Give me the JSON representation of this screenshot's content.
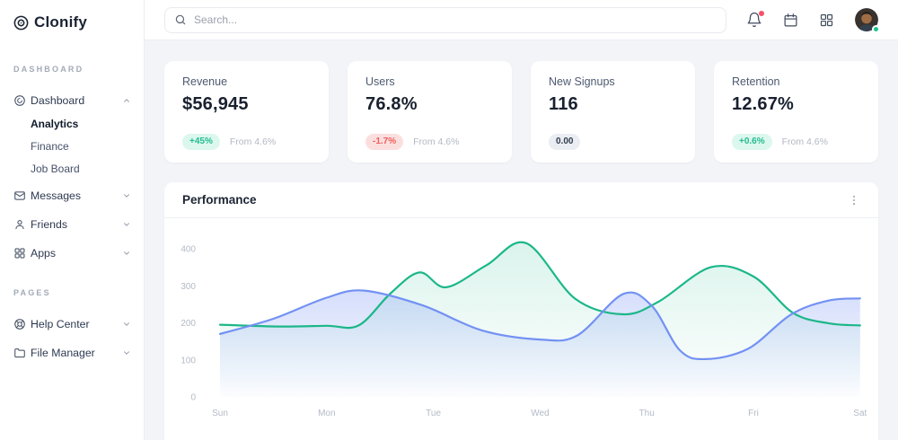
{
  "brand": {
    "name": "Clonify"
  },
  "search": {
    "placeholder": "Search..."
  },
  "sidebar": {
    "sections": [
      {
        "label": "DASHBOARD",
        "items": [
          {
            "label": "Dashboard",
            "icon": "dashboard",
            "expanded": true,
            "children": [
              {
                "label": "Analytics",
                "active": true
              },
              {
                "label": "Finance",
                "active": false
              },
              {
                "label": "Job Board",
                "active": false
              }
            ]
          },
          {
            "label": "Messages",
            "icon": "messages"
          },
          {
            "label": "Friends",
            "icon": "friends"
          },
          {
            "label": "Apps",
            "icon": "apps"
          }
        ]
      },
      {
        "label": "PAGES",
        "items": [
          {
            "label": "Help Center",
            "icon": "help"
          },
          {
            "label": "File Manager",
            "icon": "folder"
          }
        ]
      }
    ]
  },
  "topbar": {
    "notification_dot": true,
    "status_color": "#17c68d"
  },
  "stats": {
    "cards": [
      {
        "title": "Revenue",
        "value": "$56,945",
        "badge": "+45%",
        "badge_type": "positive",
        "note": "From 4.6%"
      },
      {
        "title": "Users",
        "value": "76.8%",
        "badge": "-1.7%",
        "badge_type": "negative",
        "note": "From 4.6%"
      },
      {
        "title": "New Signups",
        "value": "116",
        "badge": "0.00",
        "badge_type": "neutral",
        "note": ""
      },
      {
        "title": "Retention",
        "value": "12.67%",
        "badge": "+0.6%",
        "badge_type": "positive",
        "note": "From 4.6%"
      }
    ]
  },
  "panel": {
    "title": "Performance"
  },
  "chart_data": {
    "type": "area",
    "title": "Performance",
    "x_labels": [
      "Sun",
      "Mon",
      "Tue",
      "Wed",
      "Thu",
      "Fri",
      "Sat"
    ],
    "y_ticks": [
      0,
      100,
      200,
      300,
      400
    ],
    "ylim": [
      0,
      450
    ],
    "grid": false,
    "legend": false,
    "series": [
      {
        "name": "series-green",
        "color": "#1cb789",
        "fill_from": "rgba(28,183,137,0.16)",
        "fill_to": "rgba(28,183,137,0)",
        "points": [
          [
            0,
            195
          ],
          [
            0.55,
            190
          ],
          [
            1.0,
            192
          ],
          [
            1.3,
            193
          ],
          [
            1.6,
            280
          ],
          [
            1.87,
            336
          ],
          [
            2.12,
            296
          ],
          [
            2.5,
            356
          ],
          [
            2.87,
            415
          ],
          [
            3.33,
            265
          ],
          [
            3.78,
            223
          ],
          [
            4.11,
            257
          ],
          [
            4.6,
            350
          ],
          [
            5.0,
            325
          ],
          [
            5.37,
            227
          ],
          [
            5.7,
            199
          ],
          [
            6,
            193
          ]
        ]
      },
      {
        "name": "series-blue",
        "color": "#7391f3",
        "fill_from": "rgba(115,145,243,0.30)",
        "fill_to": "rgba(115,145,243,0.02)",
        "points": [
          [
            0,
            170
          ],
          [
            0.5,
            211
          ],
          [
            1.0,
            268
          ],
          [
            1.35,
            287
          ],
          [
            1.9,
            247
          ],
          [
            2.45,
            180
          ],
          [
            3.0,
            155
          ],
          [
            3.35,
            166
          ],
          [
            3.78,
            278
          ],
          [
            4.05,
            245
          ],
          [
            4.31,
            126
          ],
          [
            4.55,
            102
          ],
          [
            4.95,
            130
          ],
          [
            5.35,
            222
          ],
          [
            5.7,
            260
          ],
          [
            6,
            266
          ]
        ]
      }
    ]
  }
}
